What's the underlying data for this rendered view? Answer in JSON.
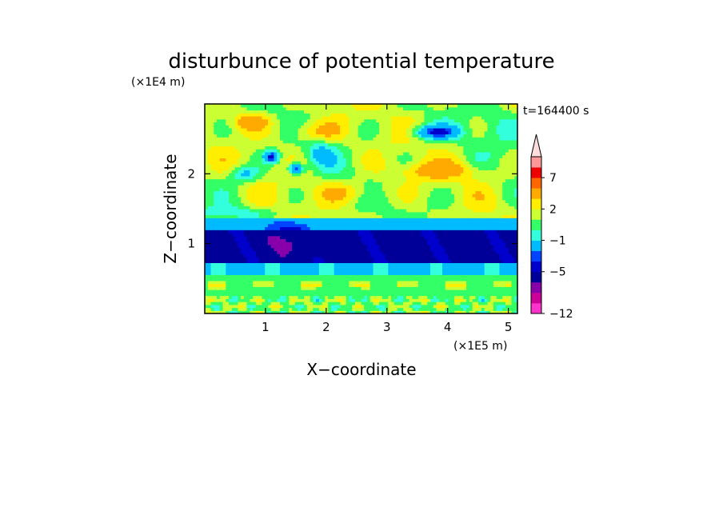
{
  "chart_data": {
    "type": "heatmap",
    "title": "disturbunce of potential temperature",
    "xlabel": "X−coordinate",
    "ylabel": "Z−coordinate",
    "x_unit": "(×1E5 m)",
    "y_unit": "(×1E4 m)",
    "time_label": "t=164400 s",
    "xlim": [
      0,
      5.15
    ],
    "ylim": [
      0,
      3.0
    ],
    "x_ticks": [
      1,
      2,
      3,
      4,
      5
    ],
    "y_ticks": [
      1,
      2
    ],
    "colorbar": {
      "levels": [
        -12,
        -10,
        -8,
        -6,
        -5,
        -4,
        -3,
        -1,
        0,
        1,
        2,
        3,
        5,
        7,
        9,
        11
      ],
      "colors": [
        "#ff33cc",
        "#cc0099",
        "#8800aa",
        "#000099",
        "#0000cc",
        "#0044ff",
        "#00bbff",
        "#33ffdd",
        "#33ff66",
        "#ccff33",
        "#ffee00",
        "#ffaa00",
        "#ff6600",
        "#ee0000",
        "#ff9999"
      ],
      "max_extension_color": "#ffdddd",
      "tick_labels": [
        {
          "value": 7,
          "label": "7"
        },
        {
          "value": 2,
          "label": "2"
        },
        {
          "value": -1,
          "label": "−1"
        },
        {
          "value": -5,
          "label": "−5"
        },
        {
          "value": -12,
          "label": "−12"
        }
      ]
    },
    "field_description": {
      "bands": [
        {
          "z": [
            0.0,
            0.25
          ],
          "value": "mixed −1 to 3"
        },
        {
          "z": [
            0.25,
            0.55
          ],
          "value": "0 to 2"
        },
        {
          "z": [
            0.55,
            0.75
          ],
          "value": "−1"
        },
        {
          "z": [
            0.75,
            1.2
          ],
          "value": "−5 to −6"
        },
        {
          "z": [
            1.2,
            1.35
          ],
          "value": "−3"
        },
        {
          "z": [
            1.35,
            3.0
          ],
          "value": "0 to 4 with eddies"
        }
      ],
      "features": [
        {
          "name": "cold eddy",
          "x": 3.8,
          "z": 2.6,
          "value": -4
        },
        {
          "name": "warm layer",
          "x": 3.8,
          "z": 2.05,
          "value": 4
        },
        {
          "name": "cold cell",
          "x": 1.1,
          "z": 2.25,
          "value": -4
        },
        {
          "name": "cold cell",
          "x": 1.5,
          "z": 2.05,
          "value": -4
        },
        {
          "name": "warm cell",
          "x": 0.8,
          "z": 2.75,
          "value": 4
        }
      ]
    }
  }
}
